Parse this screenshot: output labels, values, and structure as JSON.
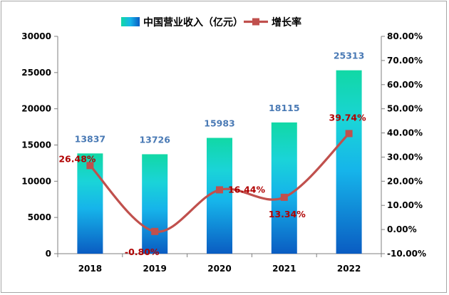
{
  "chart_data": {
    "type": "bar",
    "categories": [
      "2018",
      "2019",
      "2020",
      "2021",
      "2022"
    ],
    "series": [
      {
        "name": "中国营业收入（亿元）",
        "type": "bar",
        "axis": "left",
        "values": [
          13837,
          13726,
          15983,
          18115,
          25313
        ],
        "labels": [
          "13837",
          "13726",
          "15983",
          "18115",
          "25313"
        ]
      },
      {
        "name": "增长率",
        "type": "line",
        "axis": "right",
        "values": [
          26.48,
          -0.8,
          16.44,
          13.34,
          39.74
        ],
        "labels": [
          "26.48%",
          "-0.80%",
          "16.44%",
          "13.34%",
          "39.74%"
        ]
      }
    ],
    "left_axis": {
      "min": 0,
      "max": 30000,
      "step": 5000,
      "ticks": [
        "0",
        "5000",
        "10000",
        "15000",
        "20000",
        "25000",
        "30000"
      ]
    },
    "right_axis": {
      "min": -10,
      "max": 80,
      "step": 10,
      "ticks": [
        "-10.00%",
        "0.00%",
        "10.00%",
        "20.00%",
        "30.00%",
        "40.00%",
        "50.00%",
        "60.00%",
        "70.00%",
        "80.00%"
      ]
    },
    "legend_position": "top",
    "grid": false,
    "colors": {
      "bar_top": "#11d8a5",
      "bar_mid": "#16c2e6",
      "bar_bottom": "#0a5fc4",
      "line": "#c0504d",
      "bar_label": "#4a7ab5",
      "rate_label": "#b00000"
    }
  }
}
